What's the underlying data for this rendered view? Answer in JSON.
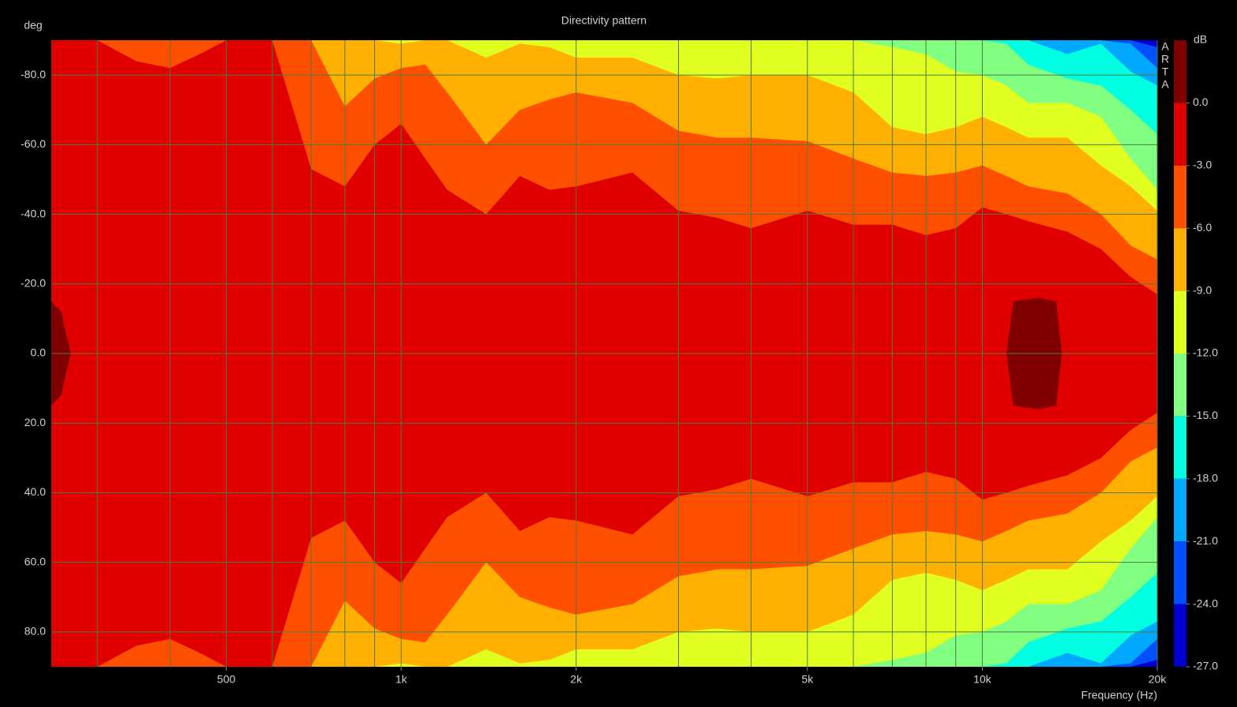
{
  "chart_data": {
    "type": "contour",
    "title": "Directivity pattern",
    "y_label": "deg",
    "x_label": "Frequency (Hz)",
    "watermark": [
      "A",
      "R",
      "T",
      "A"
    ],
    "log_x": true,
    "grid": true,
    "grid_color": "#4f7a45",
    "background_color": "#e00000",
    "xlim": [
      250,
      20000
    ],
    "xticks": [
      {
        "value": 500,
        "label": "500"
      },
      {
        "value": 1000,
        "label": "1k"
      },
      {
        "value": 2000,
        "label": "2k"
      },
      {
        "value": 5000,
        "label": "5k"
      },
      {
        "value": 10000,
        "label": "10k"
      },
      {
        "value": 20000,
        "label": "20k"
      }
    ],
    "xgrid": [
      300,
      400,
      600,
      700,
      800,
      900,
      3000,
      4000,
      6000,
      7000,
      8000,
      9000
    ],
    "ylim": [
      -90,
      90
    ],
    "yticks": [
      {
        "value": -80,
        "label": "-80.0"
      },
      {
        "value": -60,
        "label": "-60.0"
      },
      {
        "value": -40,
        "label": "-40.0"
      },
      {
        "value": -20,
        "label": "-20.0"
      },
      {
        "value": 0,
        "label": "0.0"
      },
      {
        "value": 20,
        "label": "20.0"
      },
      {
        "value": 40,
        "label": "40.0"
      },
      {
        "value": 60,
        "label": "60.0"
      },
      {
        "value": 80,
        "label": "80.0"
      }
    ],
    "x": [
      250,
      300,
      350,
      400,
      450,
      500,
      600,
      700,
      800,
      900,
      1000,
      1100,
      1200,
      1400,
      1600,
      1800,
      2000,
      2500,
      3000,
      3500,
      4000,
      5000,
      6000,
      7000,
      8000,
      9000,
      10000,
      11000,
      12000,
      14000,
      16000,
      18000,
      20000
    ],
    "series": [
      {
        "color": "#ff5000",
        "values": [
          90,
          90,
          84,
          82,
          86,
          90,
          90,
          53,
          48,
          60,
          66,
          56,
          47,
          40,
          51,
          47,
          48,
          52,
          41,
          39,
          36,
          41,
          37,
          37,
          34,
          36,
          42,
          40,
          38,
          35,
          30,
          22,
          17
        ]
      },
      {
        "color": "#ffb000",
        "values": [
          90,
          90,
          90,
          90,
          90,
          90,
          90,
          90,
          71,
          79,
          82,
          83,
          75,
          60,
          70,
          73,
          75,
          72,
          64,
          62,
          62,
          61,
          56,
          52,
          51,
          52,
          54,
          51,
          48,
          46,
          40,
          31,
          27
        ]
      },
      {
        "color": "#e0ff20",
        "values": [
          90,
          90,
          90,
          90,
          90,
          90,
          90,
          90,
          90,
          90,
          89,
          90,
          90,
          85,
          89,
          88,
          85,
          85,
          80,
          79,
          80,
          80,
          75,
          65,
          63,
          65,
          68,
          65,
          62,
          62,
          54,
          48,
          41
        ]
      },
      {
        "color": "#80ff80",
        "values": [
          90,
          90,
          90,
          90,
          90,
          90,
          90,
          90,
          90,
          90,
          90,
          90,
          90,
          90,
          90,
          90,
          90,
          90,
          90,
          90,
          90,
          90,
          90,
          88,
          86,
          81,
          80,
          77,
          72,
          72,
          68,
          56,
          47
        ]
      },
      {
        "color": "#00ffe0",
        "values": [
          90,
          90,
          90,
          90,
          90,
          90,
          90,
          90,
          90,
          90,
          90,
          90,
          90,
          90,
          90,
          90,
          90,
          90,
          90,
          90,
          90,
          90,
          90,
          90,
          90,
          90,
          90,
          89,
          83,
          79,
          77,
          70,
          63
        ]
      },
      {
        "color": "#00a8ff",
        "values": [
          90,
          90,
          90,
          90,
          90,
          90,
          90,
          90,
          90,
          90,
          90,
          90,
          90,
          90,
          90,
          90,
          90,
          90,
          90,
          90,
          90,
          90,
          90,
          90,
          90,
          90,
          90,
          90,
          90,
          86,
          89,
          81,
          77
        ]
      },
      {
        "color": "#0050ff",
        "values": [
          90,
          90,
          90,
          90,
          90,
          90,
          90,
          90,
          90,
          90,
          90,
          90,
          90,
          90,
          90,
          90,
          90,
          90,
          90,
          90,
          90,
          90,
          90,
          90,
          90,
          90,
          90,
          90,
          90,
          90,
          90,
          89,
          82
        ]
      },
      {
        "color": "#0000d0",
        "values": [
          90,
          90,
          90,
          90,
          90,
          90,
          90,
          90,
          90,
          90,
          90,
          90,
          90,
          90,
          90,
          90,
          90,
          90,
          90,
          90,
          90,
          90,
          90,
          90,
          90,
          90,
          90,
          90,
          90,
          90,
          90,
          90,
          88
        ]
      }
    ],
    "peaks": {
      "color": "#800000",
      "x": [
        250,
        260,
        270,
        5000,
        11000,
        11300,
        12500,
        13400,
        13700
      ],
      "values": [
        15,
        12,
        0,
        null,
        0,
        15,
        16,
        15,
        0
      ]
    },
    "colorbar": {
      "label": "dB",
      "lim": [
        3,
        -27
      ],
      "bounds": [
        3,
        0,
        -3,
        -6,
        -9,
        -12,
        -15,
        -18,
        -21,
        -24,
        -27
      ],
      "colors": [
        "#800000",
        "#e00000",
        "#ff5000",
        "#ffb000",
        "#e0ff20",
        "#80ff80",
        "#00ffe0",
        "#00a8ff",
        "#0050ff",
        "#0000d0"
      ],
      "ticks": [
        {
          "value": 0,
          "label": "0.0"
        },
        {
          "value": -3,
          "label": "-3.0"
        },
        {
          "value": -6,
          "label": "-6.0"
        },
        {
          "value": -9,
          "label": "-9.0"
        },
        {
          "value": -12,
          "label": "-12.0"
        },
        {
          "value": -15,
          "label": "-15.0"
        },
        {
          "value": -18,
          "label": "-18.0"
        },
        {
          "value": -21,
          "label": "-21.0"
        },
        {
          "value": -24,
          "label": "-24.0"
        },
        {
          "value": -27,
          "label": "-27.0"
        }
      ]
    }
  }
}
